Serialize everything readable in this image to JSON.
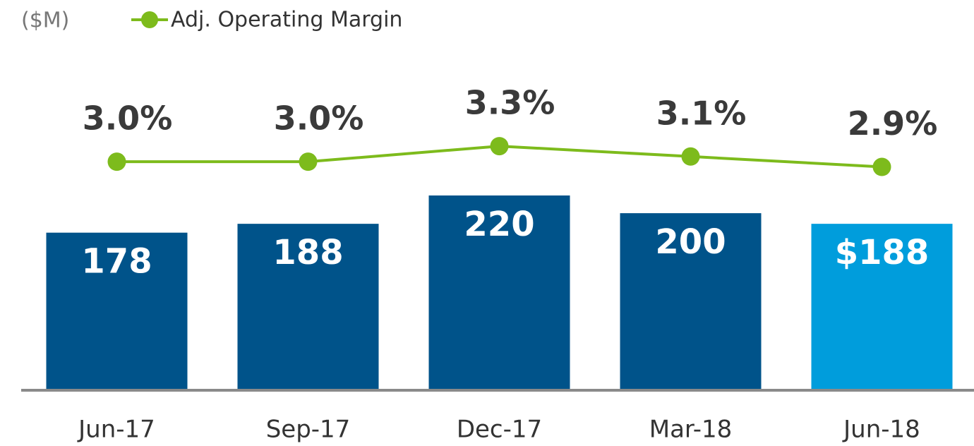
{
  "chart_data": {
    "type": "bar",
    "unit_label": "($M)",
    "categories": [
      "Jun-17",
      "Sep-17",
      "Dec-17",
      "Mar-18",
      "Jun-18"
    ],
    "ylim": [
      0,
      440
    ],
    "y2lim": [
      -1.4,
      6.1
    ],
    "series": [
      {
        "type": "bar",
        "colors": [
          "#00538a",
          "#00538a",
          "#00538a",
          "#00538a",
          "#009ddc"
        ],
        "values": [
          178,
          188,
          220,
          200,
          188
        ],
        "value_labels": [
          "178",
          "188",
          "220",
          "200",
          "$188"
        ]
      },
      {
        "type": "line",
        "name": "Adj. Operating Margin",
        "color": "#7dbb1c",
        "axis": "y2",
        "values": [
          3.0,
          3.0,
          3.3,
          3.1,
          2.9
        ],
        "value_labels": [
          "3.0%",
          "3.0%",
          "3.3%",
          "3.1%",
          "2.9%"
        ]
      }
    ]
  }
}
